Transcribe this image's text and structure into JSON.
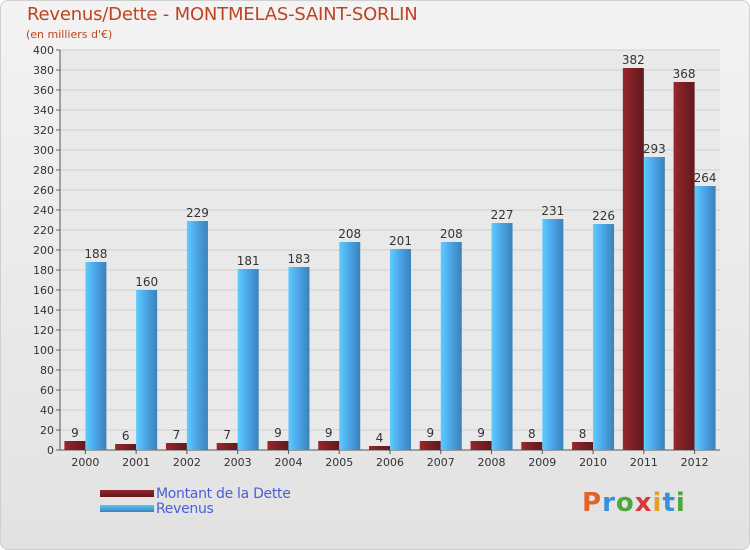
{
  "chart_data": {
    "type": "bar",
    "title": "Revenus/Dette - MONTMELAS-SAINT-SORLIN",
    "subtitle": "(en milliers d'€)",
    "categories": [
      "2000",
      "2001",
      "2002",
      "2003",
      "2004",
      "2005",
      "2006",
      "2007",
      "2008",
      "2009",
      "2010",
      "2011",
      "2012"
    ],
    "series": [
      {
        "name": "Montant de la Dette",
        "color": "#7a1f24",
        "values": [
          9,
          6,
          7,
          7,
          9,
          9,
          4,
          9,
          9,
          8,
          8,
          382,
          368
        ]
      },
      {
        "name": "Revenus",
        "color": "#4aa3e6",
        "values": [
          188,
          160,
          229,
          181,
          183,
          208,
          201,
          208,
          227,
          231,
          226,
          293,
          264
        ]
      }
    ],
    "ylim": [
      0,
      400
    ],
    "ytick_step": 20,
    "grid": true,
    "legend_position": "bottom-left"
  },
  "logo": {
    "text": "Proxiti",
    "colors": [
      "#e0642a",
      "#3b8fd6",
      "#4aa83a",
      "#d63b3b",
      "#e0a02a",
      "#3b8fd6",
      "#4aa83a"
    ]
  }
}
